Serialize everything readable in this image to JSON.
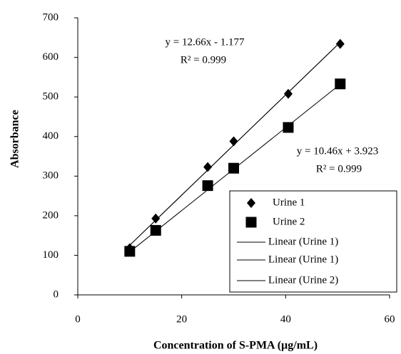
{
  "chart_data": {
    "type": "scatter",
    "x_label": "Concentration of S-PMA (µg/mL)",
    "y_label": "Absorbance",
    "xlim": [
      0,
      60
    ],
    "xticks": [
      0,
      20,
      40,
      60
    ],
    "ylim": [
      0,
      700
    ],
    "yticks": [
      0,
      100,
      200,
      300,
      400,
      500,
      600,
      700
    ],
    "grid": false,
    "legend": "lower right",
    "series": [
      {
        "name": "Urine 1",
        "marker": "diamond",
        "color": "#000000",
        "x": [
          10,
          15,
          25,
          30,
          40.5,
          50.5
        ],
        "values": [
          118,
          193,
          323,
          388,
          508,
          634
        ]
      },
      {
        "name": "Urine 2",
        "marker": "square",
        "color": "#000000",
        "x": [
          10,
          15,
          25,
          30,
          40.5,
          50.5
        ],
        "values": [
          110,
          163,
          276,
          320,
          423,
          533
        ]
      }
    ],
    "fits": [
      {
        "name": "Linear (Urine 1)",
        "slope": 12.66,
        "intercept": -1.177,
        "x_range": [
          10,
          50.5
        ]
      },
      {
        "name": "Linear (Urine 1)",
        "slope": 12.66,
        "intercept": -1.177,
        "x_range": [
          10,
          50.5
        ]
      },
      {
        "name": "Linear (Urine 2)",
        "slope": 10.46,
        "intercept": 3.923,
        "x_range": [
          10,
          50.5
        ]
      }
    ],
    "annotations": [
      {
        "text": "y = 12.66x - 1.177"
      },
      {
        "text": "R² = 0.999"
      },
      {
        "text": "y = 10.46x + 3.923"
      },
      {
        "text": "R² = 0.999"
      }
    ]
  }
}
